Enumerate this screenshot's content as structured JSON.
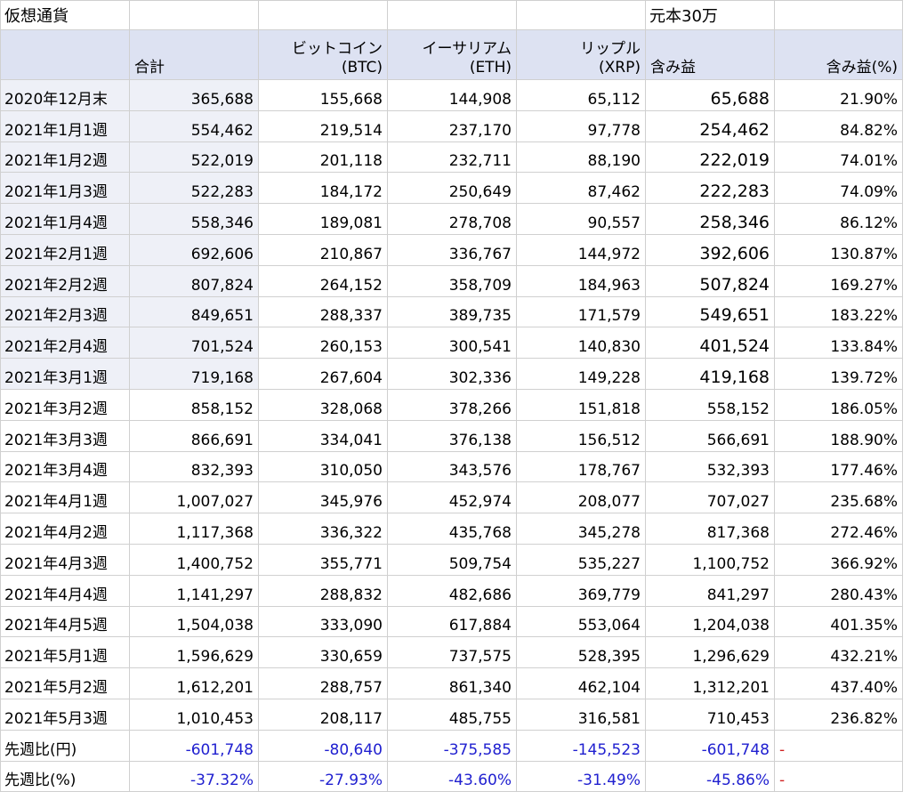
{
  "title": "仮想通貨",
  "principal_note": "元本30万",
  "headers": {
    "total": "合計",
    "btc_line1": "ビットコイン",
    "btc_line2": "(BTC)",
    "eth_line1": "イーサリアム",
    "eth_line2": "(ETH)",
    "xrp_line1": "リップル",
    "xrp_line2": "(XRP)",
    "gain": "含み益",
    "gain_pct": "含み益(%)"
  },
  "rows": [
    {
      "label": "2020年12月末",
      "total": "365,688",
      "btc": "155,668",
      "eth": "144,908",
      "xrp": "65,112",
      "gain": "65,688",
      "gain_pct": "21.90%"
    },
    {
      "label": "2021年1月1週",
      "total": "554,462",
      "btc": "219,514",
      "eth": "237,170",
      "xrp": "97,778",
      "gain": "254,462",
      "gain_pct": "84.82%"
    },
    {
      "label": "2021年1月2週",
      "total": "522,019",
      "btc": "201,118",
      "eth": "232,711",
      "xrp": "88,190",
      "gain": "222,019",
      "gain_pct": "74.01%"
    },
    {
      "label": "2021年1月3週",
      "total": "522,283",
      "btc": "184,172",
      "eth": "250,649",
      "xrp": "87,462",
      "gain": "222,283",
      "gain_pct": "74.09%"
    },
    {
      "label": "2021年1月4週",
      "total": "558,346",
      "btc": "189,081",
      "eth": "278,708",
      "xrp": "90,557",
      "gain": "258,346",
      "gain_pct": "86.12%"
    },
    {
      "label": "2021年2月1週",
      "total": "692,606",
      "btc": "210,867",
      "eth": "336,767",
      "xrp": "144,972",
      "gain": "392,606",
      "gain_pct": "130.87%"
    },
    {
      "label": "2021年2月2週",
      "total": "807,824",
      "btc": "264,152",
      "eth": "358,709",
      "xrp": "184,963",
      "gain": "507,824",
      "gain_pct": "169.27%"
    },
    {
      "label": "2021年2月3週",
      "total": "849,651",
      "btc": "288,337",
      "eth": "389,735",
      "xrp": "171,579",
      "gain": "549,651",
      "gain_pct": "183.22%"
    },
    {
      "label": "2021年2月4週",
      "total": "701,524",
      "btc": "260,153",
      "eth": "300,541",
      "xrp": "140,830",
      "gain": "401,524",
      "gain_pct": "133.84%"
    },
    {
      "label": "2021年3月1週",
      "total": "719,168",
      "btc": "267,604",
      "eth": "302,336",
      "xrp": "149,228",
      "gain": "419,168",
      "gain_pct": "139.72%"
    },
    {
      "label": "2021年3月2週",
      "total": "858,152",
      "btc": "328,068",
      "eth": "378,266",
      "xrp": "151,818",
      "gain": "558,152",
      "gain_pct": "186.05%"
    },
    {
      "label": "2021年3月3週",
      "total": "866,691",
      "btc": "334,041",
      "eth": "376,138",
      "xrp": "156,512",
      "gain": "566,691",
      "gain_pct": "188.90%"
    },
    {
      "label": "2021年3月4週",
      "total": "832,393",
      "btc": "310,050",
      "eth": "343,576",
      "xrp": "178,767",
      "gain": "532,393",
      "gain_pct": "177.46%"
    },
    {
      "label": "2021年4月1週",
      "total": "1,007,027",
      "btc": "345,976",
      "eth": "452,974",
      "xrp": "208,077",
      "gain": "707,027",
      "gain_pct": "235.68%"
    },
    {
      "label": "2021年4月2週",
      "total": "1,117,368",
      "btc": "336,322",
      "eth": "435,768",
      "xrp": "345,278",
      "gain": "817,368",
      "gain_pct": "272.46%"
    },
    {
      "label": "2021年4月3週",
      "total": "1,400,752",
      "btc": "355,771",
      "eth": "509,754",
      "xrp": "535,227",
      "gain": "1,100,752",
      "gain_pct": "366.92%"
    },
    {
      "label": "2021年4月4週",
      "total": "1,141,297",
      "btc": "288,832",
      "eth": "482,686",
      "xrp": "369,779",
      "gain": "841,297",
      "gain_pct": "280.43%"
    },
    {
      "label": "2021年4月5週",
      "total": "1,504,038",
      "btc": "333,090",
      "eth": "617,884",
      "xrp": "553,064",
      "gain": "1,204,038",
      "gain_pct": "401.35%"
    },
    {
      "label": "2021年5月1週",
      "total": "1,596,629",
      "btc": "330,659",
      "eth": "737,575",
      "xrp": "528,395",
      "gain": "1,296,629",
      "gain_pct": "432.21%"
    },
    {
      "label": "2021年5月2週",
      "total": "1,612,201",
      "btc": "288,757",
      "eth": "861,340",
      "xrp": "462,104",
      "gain": "1,312,201",
      "gain_pct": "437.40%"
    },
    {
      "label": "2021年5月3週",
      "total": "1,010,453",
      "btc": "208,117",
      "eth": "485,755",
      "xrp": "316,581",
      "gain": "710,453",
      "gain_pct": "236.82%"
    }
  ],
  "summary": [
    {
      "label": "先週比(円)",
      "total": "-601,748",
      "btc": "-80,640",
      "eth": "-375,585",
      "xrp": "-145,523",
      "gain": "-601,748",
      "extra": "-"
    },
    {
      "label": "先週比(%)",
      "total": "-37.32%",
      "btc": "-27.93%",
      "eth": "-43.60%",
      "xrp": "-31.49%",
      "gain": "-45.86%",
      "extra": "-"
    }
  ],
  "colors": {
    "header_bg": "#dde2f2",
    "shaded_cell": "#eef0f7",
    "negative_blue": "#2020d0",
    "dash_red": "#d02020",
    "gridline": "#d0d0d0"
  }
}
